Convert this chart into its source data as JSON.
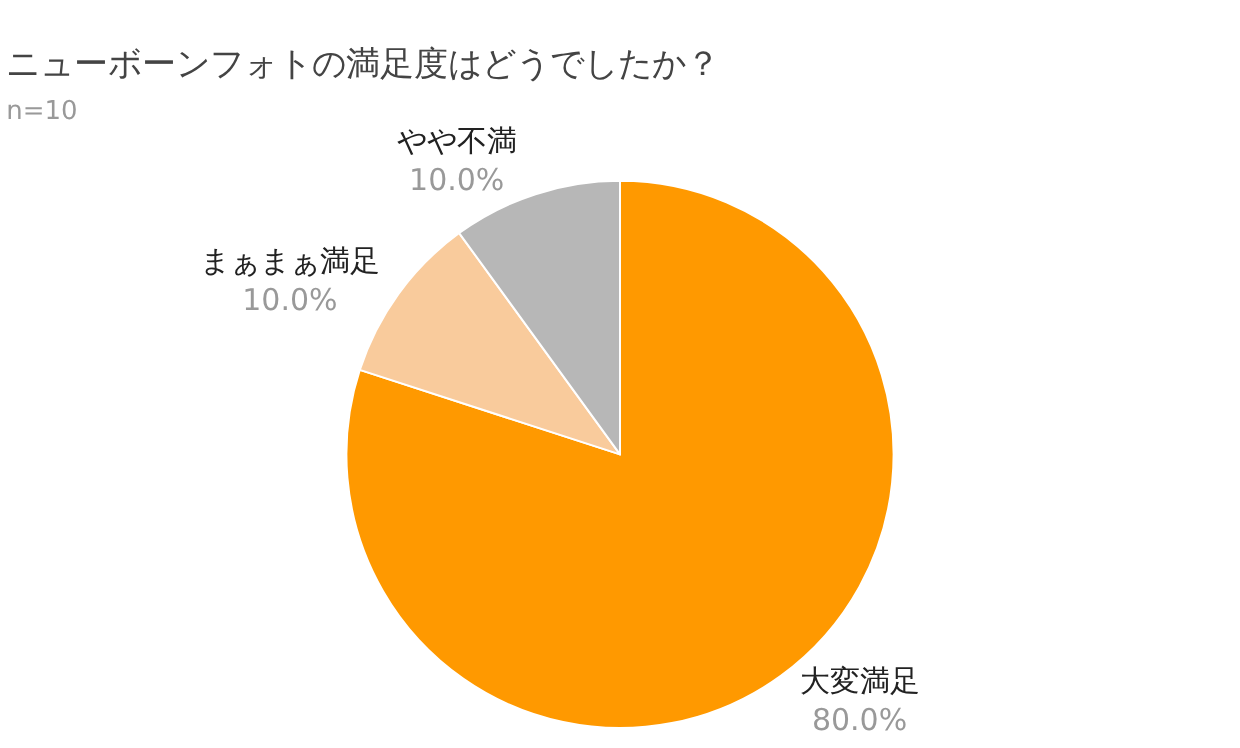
{
  "chart_data": {
    "type": "pie",
    "title": "ニューボーンフォトの満足度はどうでしたか？",
    "subtitle": "n=10",
    "categories": [
      "大変満足",
      "まぁまぁ満足",
      "やや不満"
    ],
    "values": [
      80,
      10,
      10
    ],
    "colors": [
      "#ff9900",
      "#f9cb9c",
      "#b7b7b7"
    ],
    "value_labels": [
      "80.0%",
      "10.0%",
      "10.0%"
    ],
    "legend": false
  }
}
